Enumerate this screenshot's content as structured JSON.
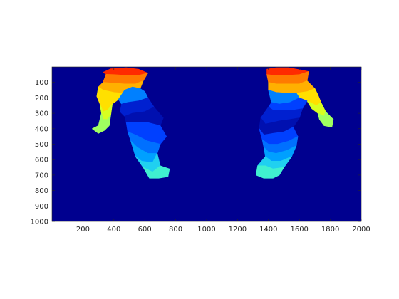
{
  "chart_data": {
    "type": "heatmap",
    "title": "",
    "xlabel": "",
    "ylabel": "",
    "xlim": [
      0,
      2000
    ],
    "ylim": [
      1000,
      0
    ],
    "x_axis_direction": "left-to-right",
    "y_axis_direction": "top-to-bottom",
    "xticks": [
      200,
      400,
      600,
      800,
      1000,
      1200,
      1400,
      1600,
      1800,
      2000
    ],
    "yticks": [
      100,
      200,
      300,
      400,
      500,
      600,
      700,
      800,
      900,
      1000
    ],
    "colormap": "jet",
    "background_color": "#00008f",
    "axes_color": "#262626",
    "grid": false,
    "legend": "none",
    "regions": [
      {
        "name": "left-top-red",
        "color": "#ff2a00",
        "points": [
          [
            330,
            35
          ],
          [
            380,
            12
          ],
          [
            480,
            5
          ],
          [
            560,
            15
          ],
          [
            620,
            40
          ],
          [
            560,
            55
          ],
          [
            480,
            55
          ],
          [
            400,
            50
          ],
          [
            350,
            48
          ]
        ]
      },
      {
        "name": "left-orange",
        "color": "#ff7a00",
        "points": [
          [
            350,
            48
          ],
          [
            400,
            50
          ],
          [
            480,
            55
          ],
          [
            560,
            55
          ],
          [
            620,
            40
          ],
          [
            590,
            90
          ],
          [
            540,
            110
          ],
          [
            470,
            110
          ],
          [
            400,
            105
          ],
          [
            330,
            100
          ]
        ]
      },
      {
        "name": "left-lightorange",
        "color": "#ffb000",
        "points": [
          [
            330,
            100
          ],
          [
            400,
            105
          ],
          [
            470,
            110
          ],
          [
            540,
            110
          ],
          [
            590,
            90
          ],
          [
            570,
            140
          ],
          [
            520,
            165
          ],
          [
            460,
            170
          ],
          [
            400,
            165
          ],
          [
            330,
            150
          ],
          [
            300,
            130
          ]
        ]
      },
      {
        "name": "left-yellow",
        "color": "#ffe000",
        "points": [
          [
            300,
            130
          ],
          [
            330,
            150
          ],
          [
            400,
            165
          ],
          [
            460,
            170
          ],
          [
            430,
            210
          ],
          [
            390,
            240
          ],
          [
            360,
            280
          ],
          [
            330,
            290
          ],
          [
            310,
            240
          ],
          [
            290,
            190
          ]
        ]
      },
      {
        "name": "left-yellowgreen",
        "color": "#d8ff20",
        "points": [
          [
            310,
            240
          ],
          [
            330,
            290
          ],
          [
            360,
            280
          ],
          [
            390,
            240
          ],
          [
            380,
            310
          ],
          [
            360,
            340
          ],
          [
            330,
            340
          ],
          [
            320,
            300
          ]
        ]
      },
      {
        "name": "left-green",
        "color": "#a0ff60",
        "points": [
          [
            320,
            300
          ],
          [
            330,
            340
          ],
          [
            360,
            340
          ],
          [
            380,
            310
          ],
          [
            370,
            380
          ],
          [
            340,
            410
          ],
          [
            300,
            430
          ],
          [
            260,
            400
          ],
          [
            300,
            380
          ]
        ]
      },
      {
        "name": "left-blue-1",
        "color": "#0040ff",
        "points": [
          [
            460,
            170
          ],
          [
            520,
            165
          ],
          [
            570,
            140
          ],
          [
            600,
            160
          ],
          [
            620,
            200
          ],
          [
            560,
            220
          ],
          [
            490,
            230
          ],
          [
            450,
            240
          ],
          [
            430,
            210
          ]
        ]
      },
      {
        "name": "left-blue-2",
        "color": "#0080ff",
        "points": [
          [
            430,
            210
          ],
          [
            450,
            240
          ],
          [
            490,
            230
          ],
          [
            560,
            220
          ],
          [
            620,
            200
          ],
          [
            600,
            160
          ],
          [
            570,
            140
          ],
          [
            520,
            130
          ],
          [
            470,
            150
          ]
        ]
      },
      {
        "name": "left-darkblue-1",
        "color": "#0020d0",
        "points": [
          [
            450,
            240
          ],
          [
            490,
            230
          ],
          [
            560,
            220
          ],
          [
            620,
            200
          ],
          [
            660,
            260
          ],
          [
            600,
            290
          ],
          [
            520,
            300
          ],
          [
            470,
            320
          ],
          [
            440,
            290
          ]
        ]
      },
      {
        "name": "left-darkblue-2",
        "color": "#0010b0",
        "points": [
          [
            470,
            320
          ],
          [
            520,
            300
          ],
          [
            600,
            290
          ],
          [
            660,
            260
          ],
          [
            720,
            330
          ],
          [
            700,
            380
          ],
          [
            620,
            360
          ],
          [
            540,
            360
          ],
          [
            480,
            360
          ]
        ]
      },
      {
        "name": "left-blue-3",
        "color": "#0040ff",
        "points": [
          [
            480,
            360
          ],
          [
            540,
            360
          ],
          [
            620,
            360
          ],
          [
            700,
            380
          ],
          [
            740,
            450
          ],
          [
            700,
            500
          ],
          [
            620,
            480
          ],
          [
            540,
            440
          ],
          [
            490,
            420
          ]
        ]
      },
      {
        "name": "left-blue-4",
        "color": "#0070ff",
        "points": [
          [
            490,
            420
          ],
          [
            540,
            440
          ],
          [
            620,
            480
          ],
          [
            700,
            500
          ],
          [
            680,
            560
          ],
          [
            620,
            560
          ],
          [
            550,
            520
          ],
          [
            510,
            480
          ]
        ]
      },
      {
        "name": "left-blue-5",
        "color": "#00a0ff",
        "points": [
          [
            510,
            480
          ],
          [
            550,
            520
          ],
          [
            620,
            560
          ],
          [
            680,
            560
          ],
          [
            650,
            620
          ],
          [
            580,
            610
          ],
          [
            540,
            580
          ]
        ]
      },
      {
        "name": "left-cyan",
        "color": "#20d0f0",
        "points": [
          [
            540,
            580
          ],
          [
            580,
            610
          ],
          [
            650,
            620
          ],
          [
            680,
            560
          ],
          [
            700,
            640
          ],
          [
            650,
            680
          ],
          [
            590,
            650
          ]
        ]
      },
      {
        "name": "left-cyan-2",
        "color": "#40f0d0",
        "points": [
          [
            590,
            650
          ],
          [
            650,
            680
          ],
          [
            700,
            640
          ],
          [
            760,
            660
          ],
          [
            750,
            710
          ],
          [
            690,
            720
          ],
          [
            630,
            720
          ]
        ]
      },
      {
        "name": "right-top-red",
        "color": "#ff2a00",
        "points": [
          [
            1390,
            15
          ],
          [
            1450,
            5
          ],
          [
            1530,
            5
          ],
          [
            1610,
            20
          ],
          [
            1660,
            30
          ],
          [
            1600,
            50
          ],
          [
            1520,
            55
          ],
          [
            1440,
            55
          ],
          [
            1390,
            50
          ]
        ]
      },
      {
        "name": "right-orange",
        "color": "#ff7a00",
        "points": [
          [
            1390,
            50
          ],
          [
            1440,
            55
          ],
          [
            1520,
            55
          ],
          [
            1600,
            50
          ],
          [
            1660,
            30
          ],
          [
            1650,
            90
          ],
          [
            1600,
            110
          ],
          [
            1520,
            110
          ],
          [
            1450,
            110
          ],
          [
            1400,
            100
          ]
        ]
      },
      {
        "name": "right-lightorange",
        "color": "#ffb000",
        "points": [
          [
            1400,
            100
          ],
          [
            1450,
            110
          ],
          [
            1520,
            110
          ],
          [
            1600,
            110
          ],
          [
            1650,
            90
          ],
          [
            1700,
            140
          ],
          [
            1650,
            160
          ],
          [
            1580,
            170
          ],
          [
            1520,
            170
          ],
          [
            1450,
            165
          ],
          [
            1400,
            150
          ]
        ]
      },
      {
        "name": "right-yellow",
        "color": "#ffe000",
        "points": [
          [
            1580,
            170
          ],
          [
            1650,
            160
          ],
          [
            1700,
            140
          ],
          [
            1720,
            180
          ],
          [
            1740,
            230
          ],
          [
            1710,
            250
          ],
          [
            1650,
            220
          ],
          [
            1600,
            200
          ]
        ]
      },
      {
        "name": "right-yellowgreen",
        "color": "#d8ff20",
        "points": [
          [
            1650,
            220
          ],
          [
            1710,
            250
          ],
          [
            1740,
            230
          ],
          [
            1770,
            290
          ],
          [
            1760,
            320
          ],
          [
            1720,
            300
          ],
          [
            1680,
            270
          ]
        ]
      },
      {
        "name": "right-green",
        "color": "#a0ff60",
        "points": [
          [
            1720,
            300
          ],
          [
            1760,
            320
          ],
          [
            1770,
            290
          ],
          [
            1820,
            340
          ],
          [
            1810,
            390
          ],
          [
            1760,
            380
          ],
          [
            1730,
            340
          ]
        ]
      },
      {
        "name": "right-blue-1",
        "color": "#0080ff",
        "points": [
          [
            1400,
            150
          ],
          [
            1450,
            165
          ],
          [
            1520,
            170
          ],
          [
            1580,
            170
          ],
          [
            1600,
            200
          ],
          [
            1540,
            230
          ],
          [
            1470,
            240
          ],
          [
            1420,
            230
          ]
        ]
      },
      {
        "name": "right-blue-2",
        "color": "#0040ff",
        "points": [
          [
            1420,
            230
          ],
          [
            1470,
            240
          ],
          [
            1540,
            230
          ],
          [
            1600,
            200
          ],
          [
            1650,
            220
          ],
          [
            1620,
            270
          ],
          [
            1560,
            280
          ],
          [
            1490,
            280
          ],
          [
            1430,
            280
          ],
          [
            1400,
            260
          ]
        ]
      },
      {
        "name": "right-darkblue-1",
        "color": "#0020d0",
        "points": [
          [
            1400,
            260
          ],
          [
            1430,
            280
          ],
          [
            1490,
            280
          ],
          [
            1560,
            280
          ],
          [
            1620,
            270
          ],
          [
            1600,
            330
          ],
          [
            1540,
            340
          ],
          [
            1470,
            350
          ],
          [
            1380,
            370
          ],
          [
            1350,
            330
          ]
        ]
      },
      {
        "name": "right-darkblue-2",
        "color": "#0010b0",
        "points": [
          [
            1350,
            330
          ],
          [
            1380,
            370
          ],
          [
            1470,
            350
          ],
          [
            1540,
            340
          ],
          [
            1600,
            330
          ],
          [
            1560,
            390
          ],
          [
            1500,
            420
          ],
          [
            1430,
            430
          ],
          [
            1370,
            440
          ],
          [
            1340,
            400
          ]
        ]
      },
      {
        "name": "right-blue-3",
        "color": "#0040ff",
        "points": [
          [
            1340,
            400
          ],
          [
            1370,
            440
          ],
          [
            1430,
            430
          ],
          [
            1500,
            420
          ],
          [
            1560,
            390
          ],
          [
            1590,
            450
          ],
          [
            1530,
            480
          ],
          [
            1460,
            500
          ],
          [
            1400,
            500
          ],
          [
            1360,
            470
          ]
        ]
      },
      {
        "name": "right-blue-4",
        "color": "#0070ff",
        "points": [
          [
            1360,
            470
          ],
          [
            1400,
            500
          ],
          [
            1460,
            500
          ],
          [
            1530,
            480
          ],
          [
            1590,
            450
          ],
          [
            1580,
            510
          ],
          [
            1520,
            540
          ],
          [
            1450,
            560
          ],
          [
            1400,
            550
          ],
          [
            1370,
            520
          ]
        ]
      },
      {
        "name": "right-blue-5",
        "color": "#00a0ff",
        "points": [
          [
            1370,
            520
          ],
          [
            1400,
            550
          ],
          [
            1450,
            560
          ],
          [
            1520,
            540
          ],
          [
            1580,
            510
          ],
          [
            1550,
            580
          ],
          [
            1480,
            610
          ],
          [
            1420,
            610
          ],
          [
            1380,
            580
          ]
        ]
      },
      {
        "name": "right-cyan",
        "color": "#20d0f0",
        "points": [
          [
            1380,
            580
          ],
          [
            1420,
            610
          ],
          [
            1480,
            610
          ],
          [
            1550,
            580
          ],
          [
            1500,
            650
          ],
          [
            1430,
            660
          ],
          [
            1380,
            640
          ],
          [
            1330,
            640
          ]
        ]
      },
      {
        "name": "right-cyan-2",
        "color": "#40f0d0",
        "points": [
          [
            1330,
            640
          ],
          [
            1380,
            640
          ],
          [
            1430,
            660
          ],
          [
            1500,
            650
          ],
          [
            1470,
            700
          ],
          [
            1430,
            720
          ],
          [
            1370,
            720
          ],
          [
            1320,
            700
          ]
        ]
      }
    ]
  }
}
